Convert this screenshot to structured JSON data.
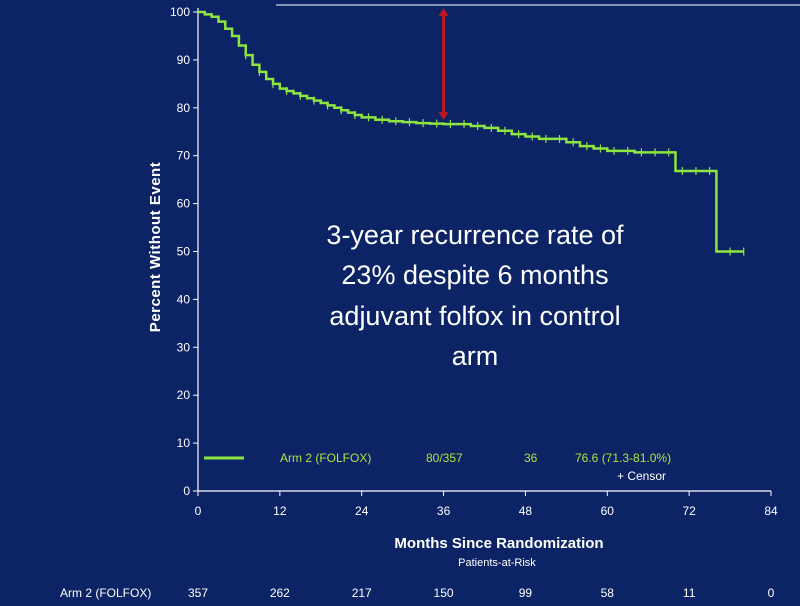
{
  "chart_data": {
    "type": "line",
    "title": "",
    "xlabel": "Months Since Randomization",
    "ylabel": "Percent Without Event",
    "xlim": [
      0,
      84
    ],
    "ylim": [
      0,
      100
    ],
    "x_ticks": [
      "0",
      "12",
      "24",
      "36",
      "48",
      "60",
      "72",
      "84"
    ],
    "y_ticks": [
      "0",
      "10",
      "20",
      "30",
      "40",
      "50",
      "60",
      "70",
      "80",
      "90",
      "100"
    ],
    "grid": false,
    "series": [
      {
        "name": "Arm 2 (FOLFOX)",
        "color": "#8ee53f",
        "step": true,
        "x": [
          0,
          1,
          2,
          3,
          4,
          5,
          6,
          7,
          8,
          9,
          10,
          11,
          12,
          13,
          14,
          15,
          16,
          17,
          18,
          19,
          20,
          21,
          22,
          23,
          24,
          26,
          28,
          30,
          32,
          34,
          36,
          40,
          42,
          44,
          46,
          48,
          50,
          54,
          56,
          58,
          60,
          64,
          70,
          70,
          76,
          76,
          80
        ],
        "y": [
          100,
          99.5,
          99,
          98,
          96.5,
          95,
          93,
          91,
          89,
          87.5,
          86,
          85,
          84,
          83.5,
          83,
          82.5,
          82,
          81.5,
          81,
          80.5,
          80,
          79.5,
          79,
          78.5,
          78,
          77.5,
          77.2,
          77,
          76.8,
          76.7,
          76.6,
          76.2,
          75.8,
          75.2,
          74.5,
          74,
          73.5,
          72.8,
          72,
          71.5,
          71,
          70.7,
          70.7,
          66.8,
          66.8,
          50,
          50
        ]
      }
    ],
    "censor_marks_x": [
      7,
      9,
      11,
      13,
      15,
      17,
      19,
      21,
      23,
      25,
      27,
      29,
      31,
      33,
      35,
      37,
      39,
      41,
      43,
      45,
      47,
      49,
      51,
      53,
      55,
      57,
      59,
      61,
      63,
      65,
      67,
      69,
      71,
      73,
      75,
      78,
      80
    ],
    "annotation": [
      "3-year recurrence rate of",
      "23% despite 6 months",
      "adjuvant folfox in control",
      "arm"
    ],
    "arrow": {
      "x": 36,
      "y_from": 100,
      "y_to": 76.6,
      "color": "#c0161c"
    },
    "legend": {
      "label": "Arm 2 (FOLFOX)",
      "events": "80/357",
      "months": "36",
      "estimate": "76.6 (71.3-81.0%)",
      "censor_label": "+ Censor"
    },
    "at_risk": {
      "heading": "Patients-at-Risk",
      "label": "Arm 2 (FOLFOX)",
      "values": [
        "357",
        "262",
        "217",
        "150",
        "99",
        "58",
        "11",
        "0"
      ]
    }
  }
}
